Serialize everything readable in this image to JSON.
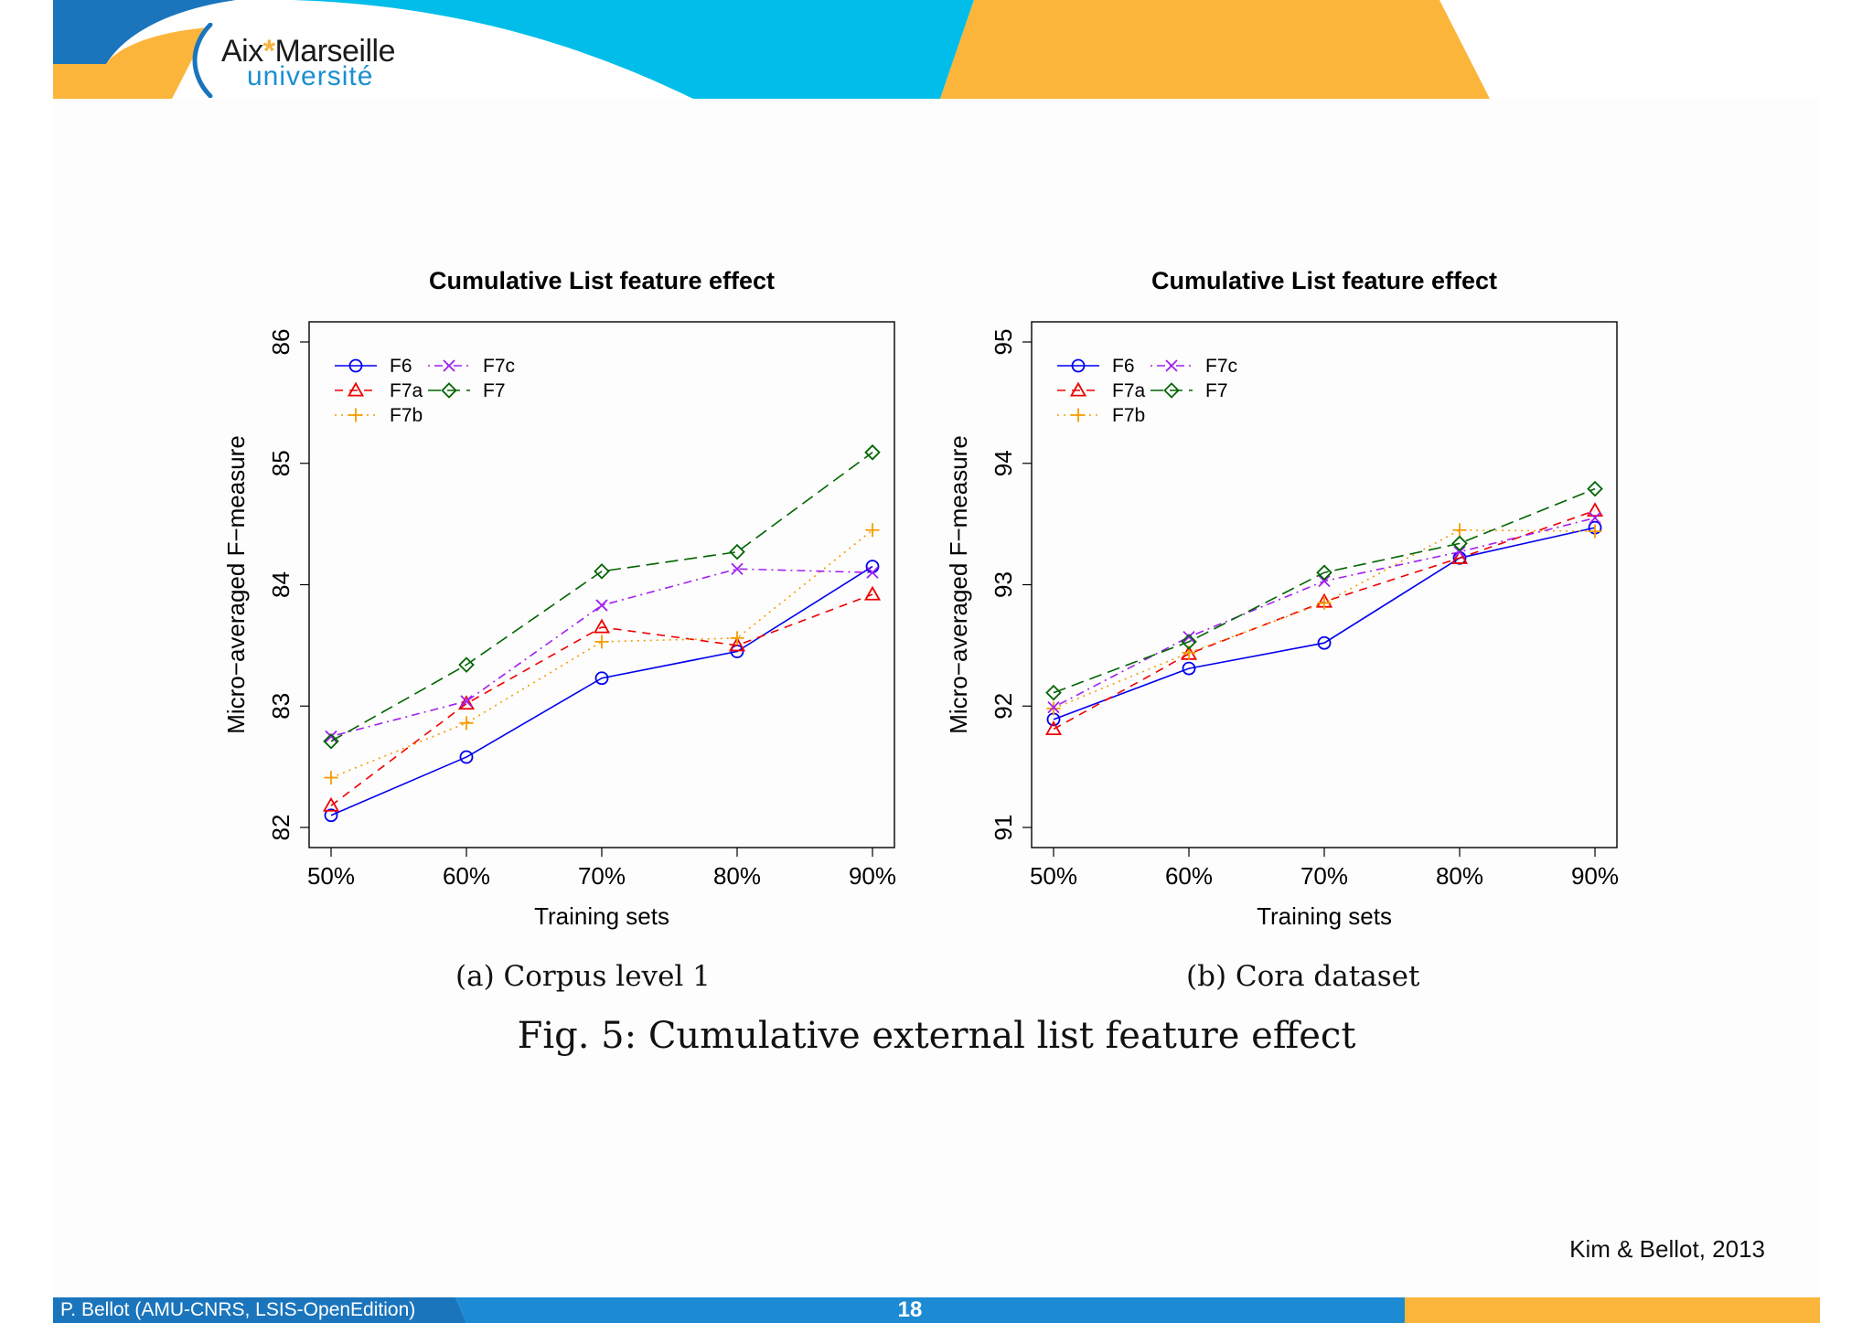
{
  "branding": {
    "logo_line1_a": "Aix",
    "logo_star": "*",
    "logo_line1_b": "Marseille",
    "logo_line2": "université",
    "colors": {
      "blue": "#00bde9",
      "dark_blue": "#1a75bc",
      "orange": "#fcb53b"
    }
  },
  "chart_data": [
    {
      "type": "line",
      "title": "Cumulative List feature effect",
      "xlabel": "Training sets",
      "ylabel": "Micro−averaged F−measure",
      "categories": [
        "50%",
        "60%",
        "70%",
        "80%",
        "90%"
      ],
      "ylim": [
        82,
        86
      ],
      "yticks": [
        "82",
        "83",
        "84",
        "85",
        "86"
      ],
      "legend_position": "top-left",
      "series": [
        {
          "name": "F6",
          "color": "#0000ee",
          "marker": "circle",
          "dash": "solid",
          "values": [
            82.1,
            82.58,
            83.23,
            83.45,
            84.15
          ]
        },
        {
          "name": "F7a",
          "color": "#ee0000",
          "marker": "triangle",
          "dash": "dashed",
          "values": [
            82.18,
            83.02,
            83.65,
            83.5,
            83.92
          ]
        },
        {
          "name": "F7b",
          "color": "#f59b00",
          "marker": "plus",
          "dash": "dotted",
          "values": [
            82.41,
            82.86,
            83.53,
            83.56,
            84.45
          ]
        },
        {
          "name": "F7c",
          "color": "#a020f0",
          "marker": "x",
          "dash": "dotdash",
          "values": [
            82.75,
            83.04,
            83.83,
            84.13,
            84.1
          ]
        },
        {
          "name": "F7",
          "color": "#006400",
          "marker": "diamond",
          "dash": "longdash",
          "values": [
            82.71,
            83.34,
            84.11,
            84.27,
            85.09
          ]
        }
      ]
    },
    {
      "type": "line",
      "title": "Cumulative List feature effect",
      "xlabel": "Training sets",
      "ylabel": "Micro−averaged F−measure",
      "categories": [
        "50%",
        "60%",
        "70%",
        "80%",
        "90%"
      ],
      "ylim": [
        91,
        95
      ],
      "yticks": [
        "91",
        "92",
        "93",
        "94",
        "95"
      ],
      "legend_position": "top-left",
      "series": [
        {
          "name": "F6",
          "color": "#0000ee",
          "marker": "circle",
          "dash": "solid",
          "values": [
            91.89,
            92.31,
            92.52,
            93.22,
            93.47
          ]
        },
        {
          "name": "F7a",
          "color": "#ee0000",
          "marker": "triangle",
          "dash": "dashed",
          "values": [
            91.81,
            92.43,
            92.86,
            93.22,
            93.61
          ]
        },
        {
          "name": "F7b",
          "color": "#f59b00",
          "marker": "plus",
          "dash": "dotted",
          "values": [
            91.98,
            92.44,
            92.85,
            93.45,
            93.44
          ]
        },
        {
          "name": "F7c",
          "color": "#a020f0",
          "marker": "x",
          "dash": "dotdash",
          "values": [
            91.99,
            92.57,
            93.03,
            93.27,
            93.55
          ]
        },
        {
          "name": "F7",
          "color": "#006400",
          "marker": "diamond",
          "dash": "longdash",
          "values": [
            92.11,
            92.53,
            93.1,
            93.34,
            93.79
          ]
        }
      ]
    }
  ],
  "captions": {
    "sub_a": "(a) Corpus level 1",
    "sub_b": "(b) Cora dataset",
    "figure": "Fig. 5: Cumulative external list feature effect"
  },
  "citation": "Kim & Bellot, 2013",
  "footer": {
    "author": "P. Bellot (AMU-CNRS, LSIS-OpenEdition)",
    "page": "18"
  }
}
